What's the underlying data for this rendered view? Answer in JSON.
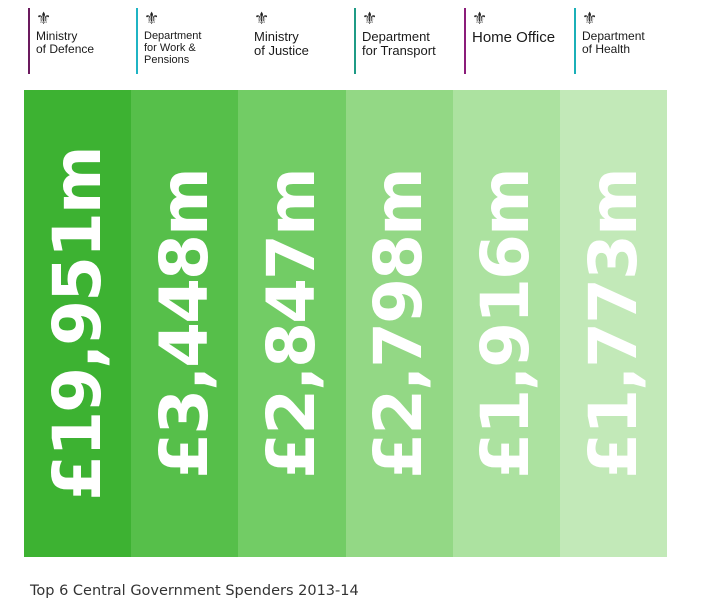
{
  "departments": [
    {
      "name": "Ministry\nof Defence",
      "rule_color": "#6b1a5e"
    },
    {
      "name": "Department\nfor Work &\nPensions",
      "rule_color": "#1fb4c4"
    },
    {
      "name": "Ministry\nof Justice",
      "rule_color": "#ffffff"
    },
    {
      "name": "Department\nfor Transport",
      "rule_color": "#1f9b86"
    },
    {
      "name": "Home Office",
      "rule_color": "#8b1d7a"
    },
    {
      "name": "Department\nof Health",
      "rule_color": "#1bb0b8"
    }
  ],
  "crest_icon": "royal-coat-of-arms-icon",
  "colors": [
    "#3db232",
    "#56bf4a",
    "#72cc65",
    "#93d885",
    "#ace2a0",
    "#c2e9b8"
  ],
  "chart_data": {
    "type": "bar",
    "title": "Top 6 Central Government Spenders 2013-14",
    "categories": [
      "Ministry of Defence",
      "Department for Work & Pensions",
      "Ministry of Justice",
      "Department for Transport",
      "Home Office",
      "Department of Health"
    ],
    "values": [
      19951,
      3448,
      2847,
      2798,
      1916,
      1773
    ],
    "unit": "£m",
    "labels": [
      "£19,951m",
      "£3,448m",
      "£2,847m",
      "£2,798m",
      "£1,916m",
      "£1,773m"
    ]
  },
  "caption": "Top 6 Central Government Spenders 2013-14"
}
